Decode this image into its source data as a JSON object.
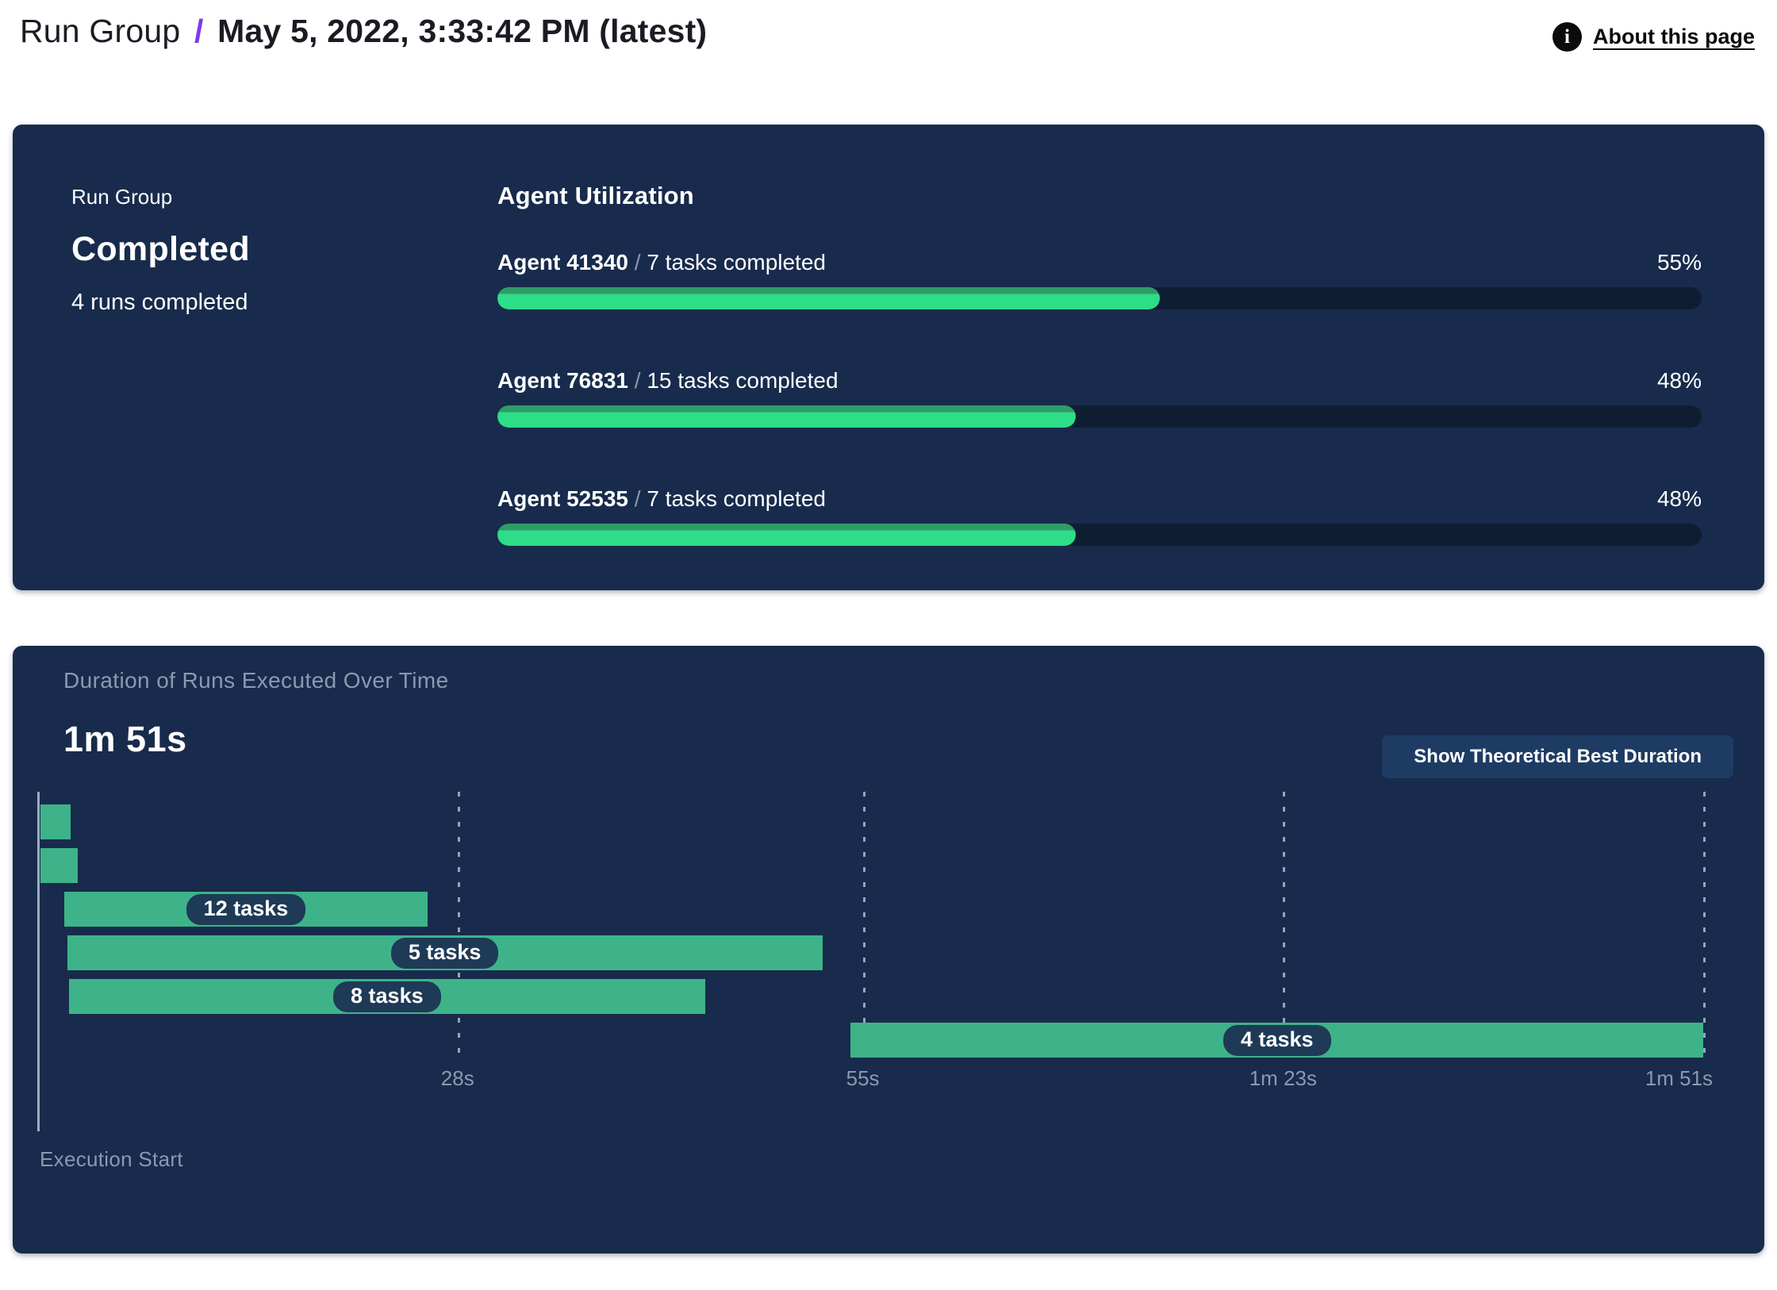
{
  "header": {
    "breadcrumb_root": "Run Group",
    "breadcrumb_separator": "/",
    "title": "May 5, 2022, 3:33:42 PM (latest)",
    "about_link_label": "About this page",
    "info_icon_glyph": "i"
  },
  "summary_panel": {
    "group_label": "Run Group",
    "status": "Completed",
    "runs_completed": "4 runs completed",
    "utilization": {
      "heading": "Agent Utilization",
      "separator": "/",
      "agents": [
        {
          "name": "Agent 41340",
          "detail": "7 tasks completed",
          "percent": 55,
          "percent_label": "55%"
        },
        {
          "name": "Agent 76831",
          "detail": "15 tasks completed",
          "percent": 48,
          "percent_label": "48%"
        },
        {
          "name": "Agent 52535",
          "detail": "7 tasks completed",
          "percent": 48,
          "percent_label": "48%"
        }
      ]
    }
  },
  "duration_panel": {
    "title": "Duration of Runs Executed Over Time",
    "total_duration": "1m 51s",
    "button_label": "Show Theoretical Best Duration",
    "axis_label": "Execution Start",
    "ticks": [
      {
        "label": "28s",
        "seconds": 28
      },
      {
        "label": "55s",
        "seconds": 55
      },
      {
        "label": "1m 23s",
        "seconds": 83
      },
      {
        "label": "1m 51s",
        "seconds": 111
      }
    ],
    "runs": [
      {
        "label": "",
        "start_s": 0.2,
        "end_s": 2.2
      },
      {
        "label": "",
        "start_s": 0.2,
        "end_s": 2.7
      },
      {
        "label": "12 tasks",
        "start_s": 1.8,
        "end_s": 26.0
      },
      {
        "label": "5 tasks",
        "start_s": 2.0,
        "end_s": 52.3
      },
      {
        "label": "8 tasks",
        "start_s": 2.1,
        "end_s": 44.5
      },
      {
        "label": "4 tasks",
        "start_s": 54.2,
        "end_s": 111.0
      }
    ]
  },
  "colors": {
    "panel_navy": "#182b4c",
    "progress_track": "#0f1d33",
    "progress_fill": "#2edd87",
    "progress_fill_shade": "#2f9c68",
    "gantt_bar_green": "#3eb389",
    "pill_navy": "#1e3a56",
    "button_navy": "#1e3c63",
    "muted_text": "#8c99af",
    "axis_gray": "#9fabbe",
    "accent_purple": "#7c3bec"
  },
  "chart_data": [
    {
      "type": "bar",
      "title": "Agent Utilization",
      "orientation": "horizontal",
      "categories": [
        "Agent 41340",
        "Agent 76831",
        "Agent 52535"
      ],
      "values": [
        55,
        48,
        48
      ],
      "value_unit": "%",
      "annotations": [
        "7 tasks completed",
        "15 tasks completed",
        "7 tasks completed"
      ],
      "xlim": [
        0,
        100
      ],
      "grid": false,
      "legend": "none"
    },
    {
      "type": "bar",
      "subtype": "gantt-timeline",
      "title": "Duration of Runs Executed Over Time",
      "total_duration_label": "1m 51s",
      "xlabel": "Execution Start",
      "x_ticks_seconds": [
        28,
        55,
        83,
        111
      ],
      "x_tick_labels": [
        "28s",
        "55s",
        "1m 23s",
        "1m 51s"
      ],
      "xlim_seconds": [
        0,
        111
      ],
      "series": [
        {
          "name": "run-1",
          "start_s": 0.2,
          "end_s": 2.2,
          "tasks_label": ""
        },
        {
          "name": "run-2",
          "start_s": 0.2,
          "end_s": 2.7,
          "tasks_label": ""
        },
        {
          "name": "run-3",
          "start_s": 1.8,
          "end_s": 26.0,
          "tasks_label": "12 tasks"
        },
        {
          "name": "run-4",
          "start_s": 2.0,
          "end_s": 52.3,
          "tasks_label": "5 tasks"
        },
        {
          "name": "run-5",
          "start_s": 2.1,
          "end_s": 44.5,
          "tasks_label": "8 tasks"
        },
        {
          "name": "run-6",
          "start_s": 54.2,
          "end_s": 111.0,
          "tasks_label": "4 tasks"
        }
      ],
      "grid": "vertical-dashed",
      "legend": "none"
    }
  ]
}
